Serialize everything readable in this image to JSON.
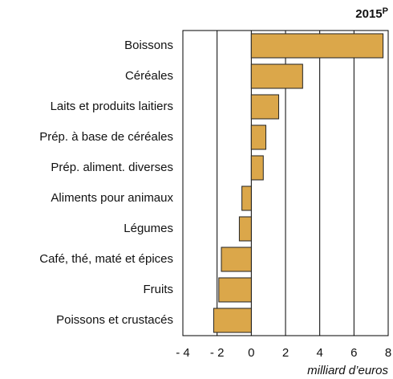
{
  "chart_data": {
    "type": "hbar",
    "annotation": "2015",
    "annotation_sup": "P",
    "x_label": "milliard d’euros",
    "categories": [
      "Boissons",
      "Céréales",
      "Laits et produits laitiers",
      "Prép. à base de céréales",
      "Prép. aliment. diverses",
      "Aliments pour animaux",
      "Légumes",
      "Café, thé, maté et épices",
      "Fruits",
      "Poissons et crustacés"
    ],
    "values": [
      7.7,
      3.0,
      1.6,
      0.85,
      0.7,
      -0.55,
      -0.7,
      -1.75,
      -1.9,
      -2.2
    ],
    "color": "#dba74a",
    "xlim": [
      -4,
      8
    ],
    "xticks": [
      {
        "value": -4,
        "label": "- 4"
      },
      {
        "value": -2,
        "label": "- 2"
      },
      0,
      2,
      4,
      6,
      8
    ],
    "grid": true
  }
}
